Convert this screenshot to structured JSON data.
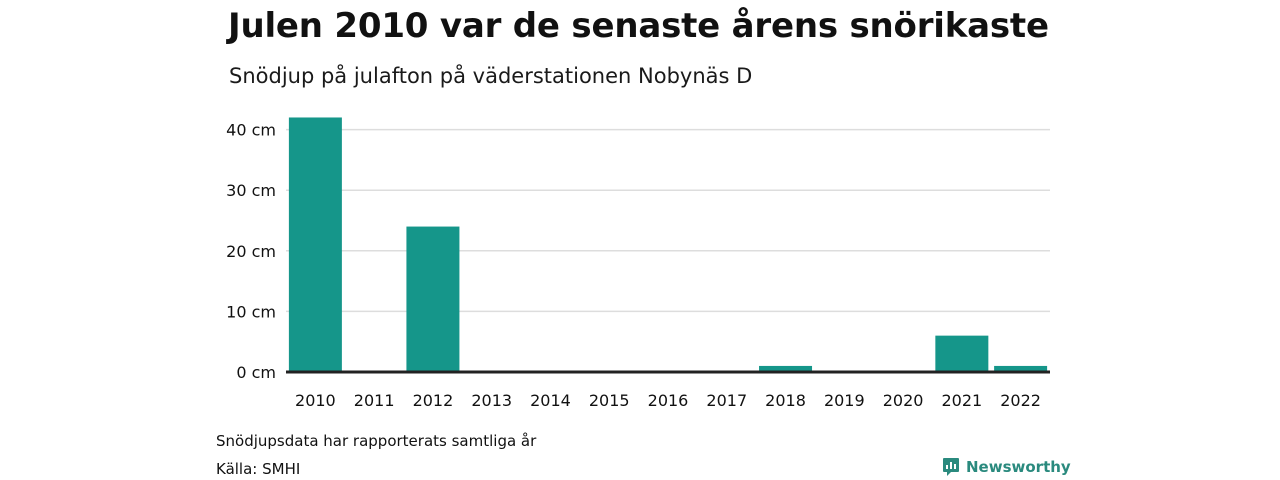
{
  "header": {
    "title": "Julen 2010 var de senaste årens snörikaste",
    "subtitle": "Snödjup på julafton på väderstationen Nobynäs D"
  },
  "footer": {
    "note": "Snödjupsdata har rapporterats samtliga år",
    "source": "Källa: SMHI",
    "brand": "Newsworthy"
  },
  "colors": {
    "bar": "#15968a",
    "grid": "#dddddd",
    "baseline": "#222222",
    "brand": "#2a8a7e"
  },
  "chart_data": {
    "type": "bar",
    "title": "Julen 2010 var de senaste årens snörikaste",
    "subtitle": "Snödjup på julafton på väderstationen Nobynäs D",
    "xlabel": "",
    "ylabel": "",
    "categories": [
      "2010",
      "2011",
      "2012",
      "2013",
      "2014",
      "2015",
      "2016",
      "2017",
      "2018",
      "2019",
      "2020",
      "2021",
      "2022"
    ],
    "values": [
      42,
      0,
      24,
      0,
      0,
      0,
      0,
      0,
      1,
      0,
      0,
      6,
      1
    ],
    "ylim": [
      0,
      40
    ],
    "yticks": [
      0,
      10,
      20,
      30,
      40
    ],
    "ytick_labels": [
      "0 cm",
      "10 cm",
      "20 cm",
      "30 cm",
      "40 cm"
    ],
    "grid": true,
    "legend": "none"
  }
}
